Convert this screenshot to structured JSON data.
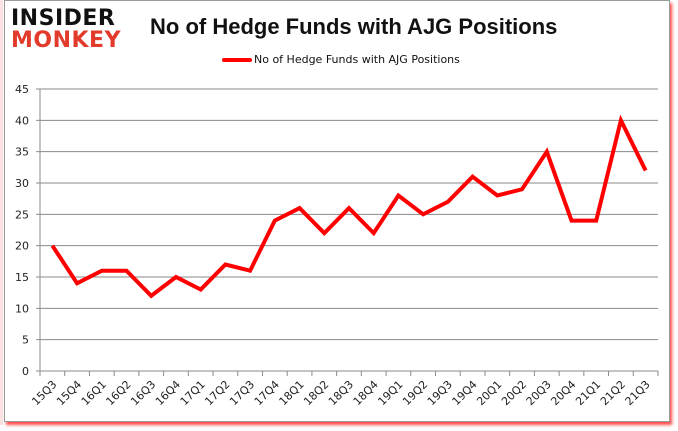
{
  "logo": {
    "line1": "INSIDER",
    "line2": "MONKEY"
  },
  "chart_data": {
    "type": "line",
    "title": "No of Hedge Funds with AJG Positions",
    "xlabel": "",
    "ylabel": "",
    "ylim": [
      0,
      45
    ],
    "yticks": [
      0,
      5,
      10,
      15,
      20,
      25,
      30,
      35,
      40,
      45
    ],
    "grid": true,
    "legend_position": "top",
    "categories": [
      "15Q3",
      "15Q4",
      "16Q1",
      "16Q2",
      "16Q3",
      "16Q4",
      "17Q1",
      "17Q2",
      "17Q3",
      "17Q4",
      "18Q1",
      "18Q2",
      "18Q3",
      "18Q4",
      "19Q1",
      "19Q2",
      "19Q3",
      "19Q4",
      "20Q1",
      "20Q2",
      "20Q3",
      "20Q4",
      "21Q1",
      "21Q2",
      "21Q3"
    ],
    "series": [
      {
        "name": "No of Hedge Funds with AJG Positions",
        "color": "#ff0000",
        "values": [
          20,
          14,
          16,
          16,
          12,
          15,
          13,
          17,
          16,
          24,
          26,
          22,
          26,
          22,
          28,
          25,
          27,
          31,
          28,
          29,
          35,
          24,
          24,
          40,
          32
        ]
      }
    ]
  }
}
